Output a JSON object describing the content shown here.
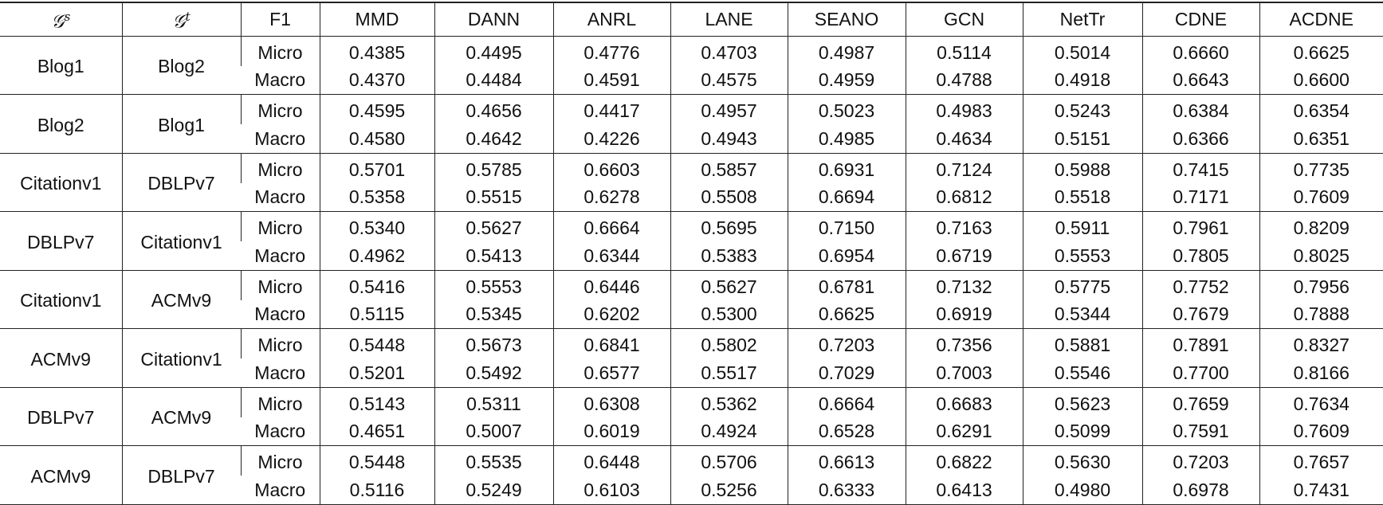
{
  "table": {
    "header": [
      {
        "symbol": "𝒢",
        "sup": "s"
      },
      {
        "symbol": "𝒢",
        "sup": "t"
      },
      "F1",
      "MMD",
      "DANN",
      "ANRL",
      "LANE",
      "SEANO",
      "GCN",
      "NetTr",
      "CDNE",
      "ACDNE"
    ],
    "groups": [
      {
        "source": "Blog1",
        "target": "Blog2",
        "rows": [
          {
            "f1": "Micro",
            "values": [
              "0.4385",
              "0.4495",
              "0.4776",
              "0.4703",
              "0.4987",
              "0.5114",
              "0.5014",
              "0.6660",
              "0.6625"
            ]
          },
          {
            "f1": "Macro",
            "values": [
              "0.4370",
              "0.4484",
              "0.4591",
              "0.4575",
              "0.4959",
              "0.4788",
              "0.4918",
              "0.6643",
              "0.6600"
            ]
          }
        ]
      },
      {
        "source": "Blog2",
        "target": "Blog1",
        "rows": [
          {
            "f1": "Micro",
            "values": [
              "0.4595",
              "0.4656",
              "0.4417",
              "0.4957",
              "0.5023",
              "0.4983",
              "0.5243",
              "0.6384",
              "0.6354"
            ]
          },
          {
            "f1": "Macro",
            "values": [
              "0.4580",
              "0.4642",
              "0.4226",
              "0.4943",
              "0.4985",
              "0.4634",
              "0.5151",
              "0.6366",
              "0.6351"
            ]
          }
        ]
      },
      {
        "source": "Citationv1",
        "target": "DBLPv7",
        "rows": [
          {
            "f1": "Micro",
            "values": [
              "0.5701",
              "0.5785",
              "0.6603",
              "0.5857",
              "0.6931",
              "0.7124",
              "0.5988",
              "0.7415",
              "0.7735"
            ]
          },
          {
            "f1": "Macro",
            "values": [
              "0.5358",
              "0.5515",
              "0.6278",
              "0.5508",
              "0.6694",
              "0.6812",
              "0.5518",
              "0.7171",
              "0.7609"
            ]
          }
        ]
      },
      {
        "source": "DBLPv7",
        "target": "Citationv1",
        "rows": [
          {
            "f1": "Micro",
            "values": [
              "0.5340",
              "0.5627",
              "0.6664",
              "0.5695",
              "0.7150",
              "0.7163",
              "0.5911",
              "0.7961",
              "0.8209"
            ]
          },
          {
            "f1": "Macro",
            "values": [
              "0.4962",
              "0.5413",
              "0.6344",
              "0.5383",
              "0.6954",
              "0.6719",
              "0.5553",
              "0.7805",
              "0.8025"
            ]
          }
        ]
      },
      {
        "source": "Citationv1",
        "target": "ACMv9",
        "rows": [
          {
            "f1": "Micro",
            "values": [
              "0.5416",
              "0.5553",
              "0.6446",
              "0.5627",
              "0.6781",
              "0.7132",
              "0.5775",
              "0.7752",
              "0.7956"
            ]
          },
          {
            "f1": "Macro",
            "values": [
              "0.5115",
              "0.5345",
              "0.6202",
              "0.5300",
              "0.6625",
              "0.6919",
              "0.5344",
              "0.7679",
              "0.7888"
            ]
          }
        ]
      },
      {
        "source": "ACMv9",
        "target": "Citationv1",
        "rows": [
          {
            "f1": "Micro",
            "values": [
              "0.5448",
              "0.5673",
              "0.6841",
              "0.5802",
              "0.7203",
              "0.7356",
              "0.5881",
              "0.7891",
              "0.8327"
            ]
          },
          {
            "f1": "Macro",
            "values": [
              "0.5201",
              "0.5492",
              "0.6577",
              "0.5517",
              "0.7029",
              "0.7003",
              "0.5546",
              "0.7700",
              "0.8166"
            ]
          }
        ]
      },
      {
        "source": "DBLPv7",
        "target": "ACMv9",
        "rows": [
          {
            "f1": "Micro",
            "values": [
              "0.5143",
              "0.5311",
              "0.6308",
              "0.5362",
              "0.6664",
              "0.6683",
              "0.5623",
              "0.7659",
              "0.7634"
            ]
          },
          {
            "f1": "Macro",
            "values": [
              "0.4651",
              "0.5007",
              "0.6019",
              "0.4924",
              "0.6528",
              "0.6291",
              "0.5099",
              "0.7591",
              "0.7609"
            ]
          }
        ]
      },
      {
        "source": "ACMv9",
        "target": "DBLPv7",
        "rows": [
          {
            "f1": "Micro",
            "values": [
              "0.5448",
              "0.5535",
              "0.6448",
              "0.5706",
              "0.6613",
              "0.6822",
              "0.5630",
              "0.7203",
              "0.7657"
            ]
          },
          {
            "f1": "Macro",
            "values": [
              "0.5116",
              "0.5249",
              "0.6103",
              "0.5256",
              "0.6333",
              "0.6413",
              "0.4980",
              "0.6978",
              "0.7431"
            ]
          }
        ]
      }
    ]
  }
}
